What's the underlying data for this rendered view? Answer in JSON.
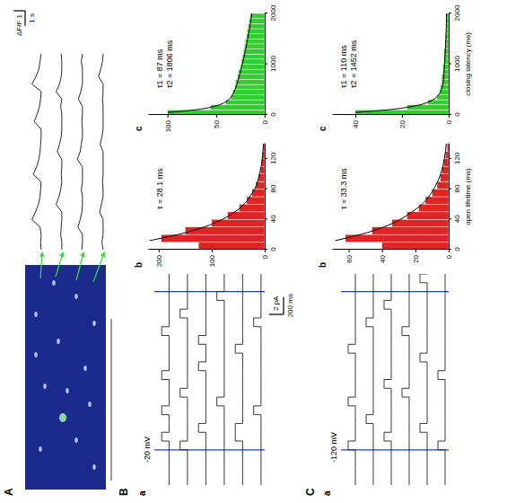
{
  "chart_data": [
    {
      "type": "line",
      "tick_labels": false,
      "color": "#111111",
      "xlim": [
        0,
        13
      ],
      "ylim": [
        -0.3,
        1.5
      ],
      "x": [
        0,
        0.5,
        1,
        1.5,
        2,
        2.5,
        3,
        3.5,
        4,
        4.5,
        5,
        5.5,
        6,
        6.5,
        7,
        7.5,
        8,
        8.5,
        9,
        9.5,
        10,
        10.5,
        11,
        11.5,
        12,
        12.5,
        13
      ],
      "series": [
        {
          "values": [
            0.1,
            0.15,
            0.1,
            0.2,
            0.9,
            0.6,
            0.35,
            0.2,
            0.15,
            0.1,
            0.8,
            0.5,
            0.3,
            0.2,
            0.15,
            0.1,
            0.1,
            0.7,
            0.45,
            0.25,
            0.15,
            0.1,
            0.9,
            0.55,
            0.3,
            0.2,
            0.1
          ]
        },
        {
          "values": [
            0.1,
            0.1,
            0.2,
            0.15,
            0.1,
            0.1,
            0.6,
            0.35,
            0.2,
            0.1,
            0.15,
            0.1,
            0.1,
            0.5,
            0.3,
            0.15,
            0.1,
            0.1,
            0.1,
            0.2,
            0.1,
            0.6,
            0.3,
            0.15,
            0.1,
            0.1,
            0.15
          ]
        },
        {
          "values": [
            0.15,
            0.1,
            0.1,
            0.5,
            0.3,
            0.15,
            0.1,
            0.1,
            0.2,
            0.1,
            0.1,
            0.1,
            0.55,
            0.3,
            0.2,
            0.1,
            0.1,
            0.15,
            0.1,
            0.1,
            0.45,
            0.25,
            0.1,
            0.1,
            0.1,
            0.2,
            0.1
          ]
        },
        {
          "values": [
            0.1,
            0.2,
            0.1,
            0.1,
            0.1,
            0.4,
            0.25,
            0.1,
            0.1,
            0.15,
            0.1,
            0.1,
            0.1,
            0.1,
            0.35,
            0.2,
            0.1,
            0.1,
            0.1,
            0.1,
            0.15,
            0.1,
            0.1,
            0.5,
            0.3,
            0.15,
            0.1
          ]
        }
      ],
      "scale_bars": [
        {
          "axis": "y",
          "value": 1,
          "label": "ΔF/F 1"
        },
        {
          "axis": "x",
          "value": 1,
          "label": "1 s"
        }
      ]
    },
    {
      "type": "line",
      "title": "-20 mV",
      "tick_labels": false,
      "color": "#222222",
      "xlim": [
        0,
        2400
      ],
      "ylim": [
        -0.5,
        2
      ],
      "x": [
        0,
        100,
        200,
        300,
        400,
        500,
        600,
        700,
        800,
        900,
        1000,
        1100,
        1200,
        1300,
        1400,
        1500,
        1600,
        1700,
        1800,
        1900,
        2000,
        2100,
        2200,
        2300,
        2400
      ],
      "markers": [
        400,
        2200
      ],
      "series": [
        {
          "values": [
            0,
            0,
            0,
            0,
            0,
            1,
            0,
            0,
            1,
            0,
            0,
            0,
            1,
            0,
            0,
            0,
            0,
            1,
            0,
            0,
            0,
            0,
            0,
            0,
            0
          ]
        },
        {
          "values": [
            0,
            0,
            0,
            0,
            1,
            0,
            0,
            0,
            0,
            0,
            1,
            0,
            0,
            0,
            0,
            0,
            0,
            0,
            0,
            1,
            0,
            0,
            0,
            0,
            0
          ]
        },
        {
          "values": [
            0,
            0,
            0,
            0,
            0,
            0,
            1,
            0,
            0,
            0,
            0,
            0,
            0,
            1,
            0,
            0,
            1,
            0,
            0,
            0,
            0,
            0,
            0,
            0,
            0
          ]
        },
        {
          "values": [
            0,
            0,
            0,
            0,
            0,
            0,
            0,
            0,
            0,
            1,
            0,
            0,
            0,
            0,
            0,
            0,
            0,
            0,
            0,
            0,
            0,
            1,
            0,
            0,
            0
          ]
        },
        {
          "values": [
            0,
            0,
            0,
            0,
            0,
            1,
            1,
            0,
            0,
            0,
            0,
            0,
            0,
            0,
            0,
            1,
            0,
            0,
            0,
            0,
            0,
            0,
            0,
            0,
            0
          ]
        },
        {
          "values": [
            0,
            0,
            0,
            0,
            0,
            0,
            0,
            0,
            1,
            0,
            0,
            0,
            0,
            0,
            0,
            0,
            0,
            0,
            1,
            0,
            0,
            0,
            0,
            0,
            0
          ]
        }
      ],
      "scale_bars": [
        {
          "axis": "y",
          "value": 2,
          "label": "2 pA"
        },
        {
          "axis": "x",
          "value": 200,
          "label": "200 ms"
        }
      ]
    },
    {
      "type": "histogram",
      "color": "#e02424",
      "xlim": [
        0,
        140
      ],
      "ylim": [
        0,
        220
      ],
      "xticks": [
        0,
        40,
        80,
        120
      ],
      "yticks": [
        0,
        100,
        200
      ],
      "bins": [
        0,
        10,
        20,
        30,
        40,
        50,
        60,
        70,
        80,
        90,
        100,
        110,
        120,
        130,
        140
      ],
      "values": [
        125,
        195,
        150,
        100,
        70,
        48,
        34,
        24,
        17,
        12,
        8,
        6,
        4,
        3
      ],
      "fit": {
        "x": [
          12,
          20,
          30,
          40,
          50,
          60,
          70,
          80,
          100,
          120,
          140
        ],
        "y": [
          217,
          164,
          114,
          80,
          56,
          39,
          28,
          19,
          9.5,
          4.7,
          2.3
        ]
      },
      "annotations": [
        "τ = 28.1 ms"
      ]
    },
    {
      "type": "histogram",
      "color": "#33cc33",
      "xlim": [
        0,
        2000
      ],
      "ylim": [
        0,
        120
      ],
      "xticks": [
        0,
        1000,
        2000
      ],
      "yticks": [
        0,
        50,
        100
      ],
      "bins": [
        0,
        100,
        200,
        300,
        400,
        500,
        600,
        700,
        800,
        900,
        1000,
        1100,
        1200,
        1300,
        1400,
        1500,
        1600,
        1700,
        1800,
        1900,
        2000
      ],
      "values": [
        100,
        56,
        40,
        35,
        33,
        31,
        30,
        28,
        27,
        25,
        24,
        23,
        22,
        21,
        20,
        19,
        18,
        17,
        16,
        15
      ],
      "fit": {
        "x": [
          50,
          100,
          150,
          200,
          300,
          500,
          750,
          1000,
          1250,
          1500,
          1750,
          2000
        ],
        "y": [
          99.7,
          72,
          56,
          46.6,
          37.3,
          30.6,
          26.4,
          23,
          20,
          17.4,
          15.2,
          13.2
        ]
      },
      "annotations": [
        "τ1 = 87 ms",
        "τ2 = 1806 ms"
      ]
    },
    {
      "type": "line",
      "title": "-120 mV",
      "tick_labels": false,
      "color": "#222222",
      "xlim": [
        0,
        2400
      ],
      "ylim": [
        -0.5,
        2
      ],
      "x": [
        0,
        100,
        200,
        300,
        400,
        500,
        600,
        700,
        800,
        900,
        1000,
        1100,
        1200,
        1300,
        1400,
        1500,
        1600,
        1700,
        1800,
        1900,
        2000,
        2100,
        2200,
        2300,
        2400
      ],
      "markers": [
        400,
        2200
      ],
      "series": [
        {
          "values": [
            0,
            0,
            0,
            0,
            1,
            0,
            0,
            0,
            0,
            1,
            0,
            0,
            0,
            0,
            0,
            1,
            0,
            0,
            0,
            0,
            0,
            0,
            0,
            0,
            0
          ]
        },
        {
          "values": [
            0,
            0,
            0,
            0,
            0,
            0,
            0,
            1,
            0,
            0,
            0,
            0,
            0,
            0,
            0,
            0,
            0,
            0,
            1,
            0,
            0,
            0,
            0,
            0,
            0
          ]
        },
        {
          "values": [
            0,
            0,
            0,
            0,
            0,
            1,
            0,
            0,
            0,
            0,
            0,
            1,
            0,
            0,
            0,
            0,
            0,
            0,
            0,
            0,
            1,
            0,
            0,
            0,
            0
          ]
        },
        {
          "values": [
            0,
            0,
            0,
            0,
            0,
            0,
            0,
            0,
            0,
            0,
            1,
            0,
            0,
            0,
            0,
            0,
            0,
            1,
            0,
            0,
            0,
            0,
            0,
            0,
            0
          ]
        },
        {
          "values": [
            0,
            0,
            0,
            0,
            0,
            0,
            1,
            0,
            0,
            0,
            0,
            0,
            0,
            0,
            1,
            0,
            0,
            0,
            0,
            0,
            0,
            0,
            0,
            1,
            0
          ]
        },
        {
          "values": [
            0,
            0,
            0,
            0,
            1,
            0,
            0,
            0,
            0,
            0,
            0,
            0,
            1,
            0,
            0,
            0,
            0,
            0,
            0,
            0,
            0,
            0,
            0,
            0,
            0
          ]
        }
      ]
    },
    {
      "type": "histogram",
      "color": "#e02424",
      "x_label": "open lifetime (ms)",
      "xlim": [
        0,
        140
      ],
      "ylim": [
        0,
        70
      ],
      "xticks": [
        0,
        40,
        80,
        120
      ],
      "yticks": [
        0,
        20,
        40,
        60
      ],
      "bins": [
        0,
        10,
        20,
        30,
        40,
        50,
        60,
        70,
        80,
        90,
        100,
        110,
        120,
        130,
        140
      ],
      "values": [
        40,
        62,
        46,
        34,
        25,
        18,
        14,
        10,
        7,
        5,
        4,
        3,
        2,
        1
      ],
      "fit": {
        "x": [
          12,
          20,
          30,
          40,
          50,
          60,
          70,
          80,
          100,
          120,
          140
        ],
        "y": [
          68,
          53,
          39,
          29,
          22,
          16,
          12,
          9,
          4.8,
          2.6,
          1.4
        ]
      },
      "annotations": [
        "τ = 33.3 ms"
      ]
    },
    {
      "type": "histogram",
      "color": "#33cc33",
      "x_label": "closing latency (ms)",
      "xlim": [
        0,
        2000
      ],
      "ylim": [
        0,
        50
      ],
      "xticks": [
        0,
        1000,
        2000
      ],
      "yticks": [
        0,
        20,
        40
      ],
      "bins": [
        0,
        100,
        200,
        300,
        400,
        500,
        600,
        700,
        800,
        900,
        1000,
        1100,
        1200,
        1300,
        1400,
        1500,
        1600,
        1700,
        1800,
        1900,
        2000
      ],
      "values": [
        40,
        18,
        9,
        5,
        4,
        3.5,
        3,
        3,
        2.5,
        2.5,
        2,
        2,
        2,
        1.5,
        1.5,
        1.5,
        1,
        1,
        1,
        1
      ],
      "fit": {
        "x": [
          50,
          100,
          150,
          200,
          300,
          400,
          500,
          750,
          1000,
          1500,
          2000
        ],
        "y": [
          40,
          26.5,
          17.9,
          12.4,
          6.7,
          4.2,
          3.1,
          2.1,
          1.8,
          1.2,
          0.9
        ]
      },
      "annotations": [
        "τ1 = 110 ms",
        "τ2 = 1452 ms"
      ]
    }
  ],
  "figure": {
    "panels": [
      {
        "label": "A"
      },
      {
        "label": "B",
        "sub_labels": [
          "a",
          "b",
          "c"
        ]
      },
      {
        "label": "C",
        "sub_labels": [
          "a",
          "b",
          "c"
        ]
      }
    ]
  }
}
